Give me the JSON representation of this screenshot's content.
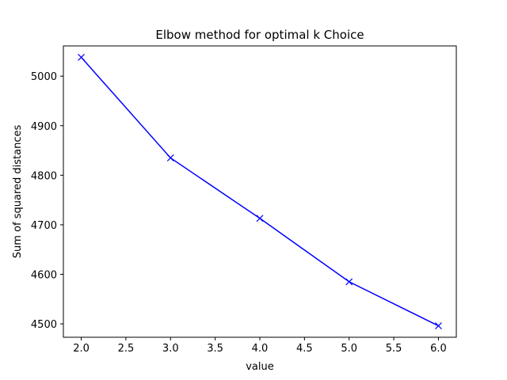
{
  "chart_data": {
    "type": "line",
    "title": "Elbow method for optimal k Choice",
    "xlabel": "value",
    "ylabel": "Sum of squared distances",
    "x": [
      2,
      3,
      4,
      5,
      6
    ],
    "series": [
      {
        "values": [
          5038,
          4835,
          4713,
          4585,
          4496
        ],
        "color": "#0000ff",
        "marker": "x"
      }
    ],
    "xlim": [
      1.8,
      6.2
    ],
    "ylim": [
      4473,
      5061
    ],
    "xticks": [
      2.0,
      2.5,
      3.0,
      3.5,
      4.0,
      4.5,
      5.0,
      5.5,
      6.0
    ],
    "xtick_labels": [
      "2.0",
      "2.5",
      "3.0",
      "3.5",
      "4.0",
      "4.5",
      "5.0",
      "5.5",
      "6.0"
    ],
    "yticks": [
      4500,
      4600,
      4700,
      4800,
      4900,
      5000
    ],
    "ytick_labels": [
      "4500",
      "4600",
      "4700",
      "4800",
      "4900",
      "5000"
    ],
    "grid": false,
    "legend": "none"
  }
}
